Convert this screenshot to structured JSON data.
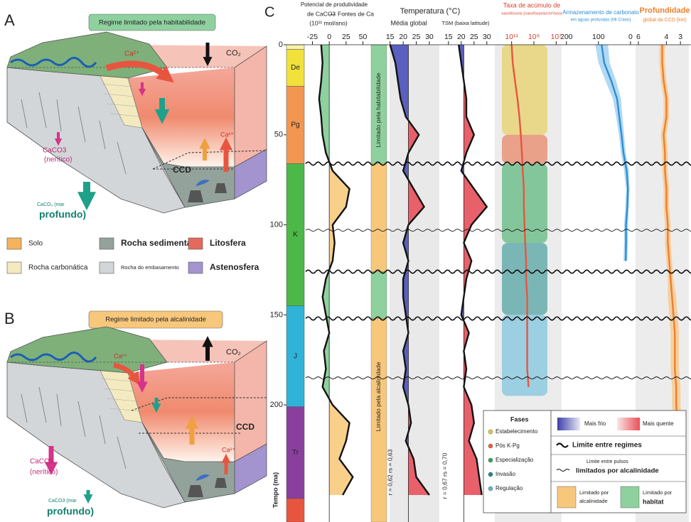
{
  "panel_labels": {
    "a": "A",
    "b": "B",
    "c": "C"
  },
  "panel_a": {
    "title": "Regime limitado pela habitabilidade",
    "co2": "CO₂",
    "ca_top": "Ca²⁺",
    "ca_right": "Ca²⁺",
    "ccd": "CCD",
    "neritic_1": "CaCO3",
    "neritic_2": "(nerítico)",
    "deep_1": "CaCO₃ (mar",
    "deep_2": "profundo)"
  },
  "panel_b": {
    "title": "Regime limitado pela alcalinidade",
    "co2": "CO₂",
    "ca_top": "Ca²⁺",
    "ca_right": "Ca²⁺",
    "ccd": "CCD",
    "neritic_1": "CaCO3",
    "neritic_2": "(nerítico)",
    "deep_1": "CaCO3 (mar",
    "deep_2": "profundo)"
  },
  "materials": [
    {
      "name": "Solo",
      "color": "#f5b25f"
    },
    {
      "name": "Rocha sedimentar",
      "color": "#93a39c"
    },
    {
      "name": "Litosfera",
      "color": "#e36b5c"
    },
    {
      "name": "Rocha carbonática",
      "color": "#f3ebbf"
    },
    {
      "name": "Rocha do embasamento",
      "color": "#d3d6d8"
    },
    {
      "name": "Astenosfera",
      "color": "#a394cf"
    }
  ],
  "chart_data": {
    "type": "line",
    "y_label": "Tempo (ma)",
    "ylim": [
      0,
      265
    ],
    "yticks": [
      0,
      50,
      100,
      150,
      200
    ],
    "x": [
      0,
      10,
      20,
      30,
      40,
      50,
      60,
      70,
      80,
      90,
      100,
      110,
      120,
      130,
      140,
      150,
      160,
      170,
      180,
      190,
      200,
      210,
      220,
      230,
      240,
      250
    ],
    "temperature_title": "Temperatura (°C)",
    "periods": {
      "names": [
        null,
        "De",
        "Pg",
        "K",
        "J",
        "Tr",
        null
      ],
      "starts": [
        0,
        2.6,
        23,
        66,
        145,
        201,
        252
      ],
      "colors": [
        "#f6f3a8",
        "#f1e13a",
        "#f29650",
        "#4cb848",
        "#2fb3d8",
        "#8a3f9e",
        "#e8553f"
      ]
    },
    "regimes": {
      "labels": [
        "Limitado pela habitabilidade",
        "Limitado pela alcalinidade"
      ],
      "starts": [
        0,
        66,
        126,
        152
      ],
      "colors": [
        "#8fd19e",
        "#f7c77b",
        "#8fd19e",
        "#f7c77b"
      ]
    },
    "correlations": [
      "r = 0,62 rs = 0,63",
      "r = 0,67 rs = 0,70"
    ],
    "regime_boundaries": [
      66,
      126,
      152
    ],
    "pulse_boundaries": [
      103,
      185
    ],
    "tracks": [
      {
        "kind": "signed_fill",
        "header": [
          "Potencial de produtividade",
          "de CaCO3",
          "—",
          "Fontes de Ca",
          "(10¹¹ mol/ano)"
        ],
        "xlim": [
          -35,
          60
        ],
        "xticks": [
          -25,
          0,
          25,
          50
        ],
        "low_color": "#8fd19e",
        "high_color": "#f9d08a",
        "values": [
          -12,
          -10,
          -12,
          -15,
          -12,
          -10,
          -5,
          5,
          30,
          25,
          5,
          8,
          5,
          -5,
          -10,
          -5,
          0,
          -8,
          -5,
          -10,
          5,
          30,
          25,
          15,
          35,
          20
        ]
      },
      {
        "kind": "temperature",
        "header": [
          "Média global"
        ],
        "xlim": [
          14,
          33
        ],
        "xticks": [
          15,
          20,
          25,
          30
        ],
        "reference": 22,
        "low_color": "#5b5fc0",
        "high_color": "#e8606a",
        "values": [
          15,
          17,
          18,
          19,
          21,
          26,
          22,
          20,
          24,
          28,
          22,
          20,
          22,
          20,
          20,
          21,
          22,
          20,
          21,
          20,
          22,
          23,
          21,
          24,
          25,
          30
        ]
      },
      {
        "kind": "temperature",
        "header": [
          "TSM (baixa latitude)"
        ],
        "xlim": [
          12,
          32
        ],
        "xticks": [
          15,
          20,
          25,
          30
        ],
        "reference": 21,
        "low_color": "#5b5fc0",
        "high_color": "#e8606a",
        "values": [
          19,
          20,
          21,
          22,
          22,
          25,
          22,
          20,
          25,
          30,
          24,
          21,
          24,
          22,
          21,
          20,
          23,
          21,
          22,
          21,
          24,
          25,
          23,
          26,
          27,
          28
        ]
      },
      {
        "kind": "log_line",
        "header": [
          "Taxa de acúmulo de",
          "nanofósseis (nanofósseis/cm²/ano)"
        ],
        "log": true,
        "xlim": [
          1000000000000.0,
          1000000.0
        ],
        "xticks": [
          {
            "value": 100000000000.0,
            "label": "10¹¹"
          },
          {
            "value": 1000000000.0,
            "label": "10⁹"
          },
          {
            "value": 10000000.0,
            "label": "10⁷"
          }
        ],
        "color": "#e8553f",
        "values": [
          100000000000.0,
          80000000000.0,
          50000000000.0,
          30000000000.0,
          20000000000.0,
          15000000000.0,
          12000000000.0,
          10000000000.0,
          8000000000.0,
          8000000000.0,
          7000000000.0,
          6000000000.0,
          5000000000.0,
          5000000000.0,
          4000000000.0,
          4000000000.0,
          4000000000.0,
          4000000000.0,
          4000000000.0,
          3000000000.0,
          null,
          null,
          null,
          null,
          null,
          null
        ],
        "phases": {
          "title": "Fases",
          "names": [
            "Estabelecimento",
            "Pós K-Pg",
            "Especialização",
            "Invasão",
            "Regulação"
          ],
          "colors": [
            "#e8c93a",
            "#e8643a",
            "#2fa85a",
            "#1f8a8a",
            "#5ab8d8"
          ],
          "starts": [
            0,
            50,
            66,
            110,
            150
          ],
          "ends": [
            50,
            66,
            110,
            150,
            195
          ]
        }
      },
      {
        "kind": "band_line",
        "header": [
          "Armazenamento de carbonato",
          "em águas profundas (Mt C/ano)"
        ],
        "xlim": [
          215,
          -18
        ],
        "xticks": [
          200,
          100,
          0
        ],
        "color": "#2b8fd6",
        "band_color": "#9fd0f0",
        "values": [
          90,
          82,
          60,
          42,
          35,
          28,
          22,
          12,
          8,
          10,
          14,
          14,
          15,
          null,
          null,
          null,
          null,
          null,
          null,
          null,
          null,
          null,
          null,
          null,
          null,
          null
        ],
        "lower": [
          70,
          65,
          45,
          30,
          25,
          20,
          15,
          5,
          3,
          5,
          8,
          8,
          10,
          null,
          null,
          null,
          null,
          null,
          null,
          null,
          null,
          null,
          null,
          null,
          null,
          null
        ],
        "upper": [
          110,
          100,
          78,
          55,
          45,
          36,
          30,
          20,
          14,
          16,
          20,
          20,
          22,
          null,
          null,
          null,
          null,
          null,
          null,
          null,
          null,
          null,
          null,
          null,
          null,
          null
        ]
      },
      {
        "kind": "band_line",
        "header": [
          "Profundidade",
          "global da CCD (km)"
        ],
        "xlim": [
          6.2,
          2.4
        ],
        "xticks": [
          6,
          4,
          3
        ],
        "color": "#f07f2a",
        "band_color": "#f9c98f",
        "values": [
          4.3,
          4.3,
          4.2,
          4.0,
          4.0,
          4.2,
          4.1,
          4.1,
          4.0,
          4.0,
          3.9,
          3.9,
          3.8,
          3.7,
          3.6,
          3.5,
          3.4,
          3.4,
          3.4,
          3.3,
          3.3,
          3.2,
          3.2,
          3.2,
          3.1,
          3.1
        ],
        "lower": [
          4.1,
          4.1,
          4.0,
          3.8,
          3.8,
          4.0,
          3.9,
          3.9,
          3.8,
          3.8,
          3.7,
          3.7,
          3.6,
          3.5,
          3.3,
          3.2,
          3.1,
          3.1,
          3.1,
          3.0,
          3.0,
          2.9,
          2.9,
          2.9,
          2.8,
          2.8
        ],
        "upper": [
          4.5,
          4.5,
          4.4,
          4.2,
          4.2,
          4.4,
          4.3,
          4.3,
          4.2,
          4.2,
          4.1,
          4.1,
          4.0,
          3.9,
          3.9,
          3.8,
          3.7,
          3.7,
          3.7,
          3.6,
          3.6,
          3.5,
          3.5,
          3.5,
          3.4,
          3.4
        ]
      }
    ],
    "legend": {
      "cold": "Mais frio",
      "warm": "Mais quente",
      "regime": "Limite entre regimes",
      "pulse_1": "Limite entre pulsos",
      "pulse_2": "limitados por alcalinidade",
      "alk_1": "Limitado por",
      "alk_2": "alcalinidade",
      "hab_1": "Limitado por",
      "hab_2": "habitat"
    }
  }
}
